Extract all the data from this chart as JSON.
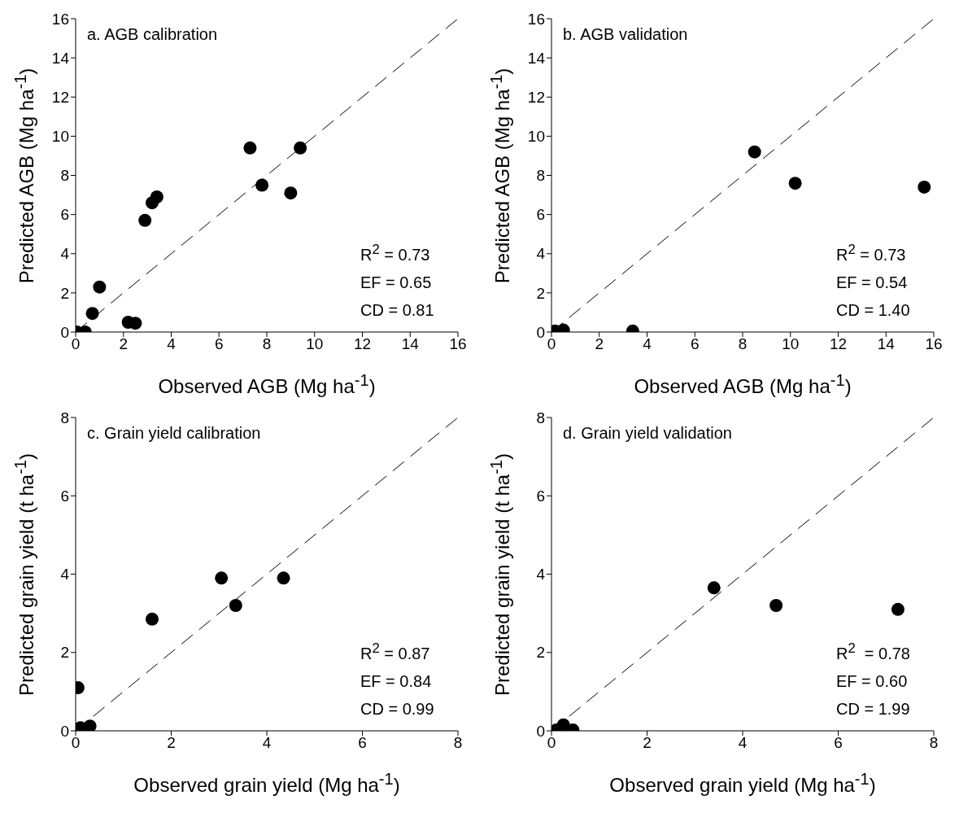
{
  "chart_data": [
    {
      "type": "scatter",
      "title": "a. AGB calibration",
      "xlabel": "Observed AGB (Mg ha$^{-1}$)",
      "ylabel": "Predicted AGB (Mg ha$^{-1}$)",
      "xlim": [
        0,
        16
      ],
      "ylim": [
        0,
        16
      ],
      "xticks": [
        0,
        2,
        4,
        6,
        8,
        10,
        12,
        14,
        16
      ],
      "yticks": [
        0,
        2,
        4,
        6,
        8,
        10,
        12,
        14,
        16
      ],
      "annotations": [
        "R$^{2}$ = 0.73",
        "EF = 0.65",
        "CD = 0.81"
      ],
      "series": [
        {
          "type": "scatter",
          "color": "#000000",
          "marker": "circle",
          "x": [
            0.05,
            0.4,
            0.7,
            1.0,
            2.2,
            2.5,
            2.9,
            3.2,
            3.4,
            7.3,
            7.8,
            9.0,
            9.4
          ],
          "values": [
            0.0,
            0.0,
            0.95,
            2.3,
            0.5,
            0.45,
            5.7,
            6.6,
            6.9,
            9.4,
            7.5,
            7.1,
            9.4
          ]
        },
        {
          "type": "line",
          "color": "#000000",
          "marker": "none",
          "line_style": "dashed",
          "x": [
            0,
            16
          ],
          "values": [
            0,
            16
          ]
        }
      ]
    },
    {
      "type": "scatter",
      "title": "b. AGB validation",
      "xlabel": "Observed AGB (Mg ha$^{-1}$)",
      "ylabel": "Predicted AGB (Mg ha$^{-1}$)",
      "xlim": [
        0,
        16
      ],
      "ylim": [
        0,
        16
      ],
      "xticks": [
        0,
        2,
        4,
        6,
        8,
        10,
        12,
        14,
        16
      ],
      "yticks": [
        0,
        2,
        4,
        6,
        8,
        10,
        12,
        14,
        16
      ],
      "annotations": [
        "R$^{2}$ = 0.73",
        "EF = 0.54",
        "CD = 1.40"
      ],
      "series": [
        {
          "type": "scatter",
          "color": "#000000",
          "marker": "circle",
          "x": [
            0.15,
            0.5,
            3.4,
            8.5,
            10.2,
            15.6
          ],
          "values": [
            0.05,
            0.1,
            0.05,
            9.2,
            7.6,
            7.4
          ]
        },
        {
          "type": "line",
          "color": "#000000",
          "marker": "none",
          "line_style": "dashed",
          "x": [
            0,
            16
          ],
          "values": [
            0,
            16
          ]
        }
      ]
    },
    {
      "type": "scatter",
      "title": "c. Grain yield calibration",
      "xlabel": "Observed grain yield (Mg ha$^{-1}$)",
      "ylabel": "Predicted grain yield (t ha$^{-1}$)",
      "xlim": [
        0,
        8
      ],
      "ylim": [
        0,
        8
      ],
      "xticks": [
        0,
        2,
        4,
        6,
        8
      ],
      "yticks": [
        0,
        2,
        4,
        6,
        8
      ],
      "annotations": [
        "R$^{2}$ = 0.87",
        "EF = 0.84",
        "CD = 0.99"
      ],
      "series": [
        {
          "type": "scatter",
          "color": "#000000",
          "marker": "circle",
          "x": [
            0.05,
            0.1,
            0.3,
            1.6,
            3.05,
            3.35,
            4.35
          ],
          "values": [
            1.1,
            0.08,
            0.12,
            2.85,
            3.9,
            3.2,
            3.9
          ]
        },
        {
          "type": "line",
          "color": "#000000",
          "marker": "none",
          "line_style": "dashed",
          "x": [
            0,
            8
          ],
          "values": [
            0,
            8
          ]
        }
      ]
    },
    {
      "type": "scatter",
      "title": "d. Grain yield validation",
      "xlabel": "Observed grain yield (Mg ha$^{-1}$)",
      "ylabel": "Predicted grain yield (t ha$^{-1}$)",
      "xlim": [
        0,
        8
      ],
      "ylim": [
        0,
        8
      ],
      "xticks": [
        0,
        2,
        4,
        6,
        8
      ],
      "yticks": [
        0,
        2,
        4,
        6,
        8
      ],
      "annotations": [
        "R$^{2}$  = 0.78",
        "EF = 0.60",
        "CD = 1.99"
      ],
      "series": [
        {
          "type": "scatter",
          "color": "#000000",
          "marker": "circle",
          "x": [
            0.1,
            0.25,
            0.45,
            3.4,
            4.7,
            7.25
          ],
          "values": [
            0.02,
            0.15,
            0.02,
            3.65,
            3.2,
            3.1
          ]
        },
        {
          "type": "line",
          "color": "#000000",
          "marker": "none",
          "line_style": "dashed",
          "x": [
            0,
            8
          ],
          "values": [
            0,
            8
          ]
        }
      ]
    }
  ]
}
